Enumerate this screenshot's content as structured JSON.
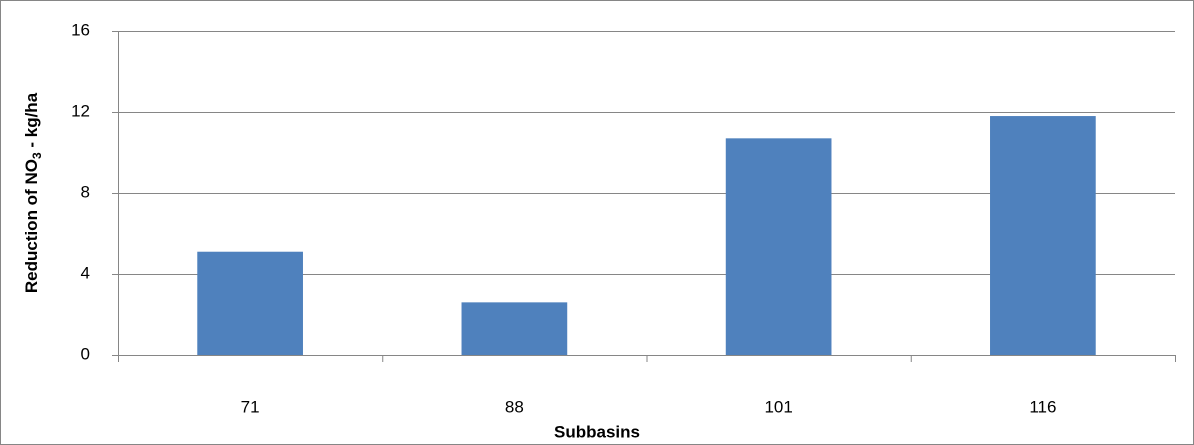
{
  "chart_data": {
    "type": "bar",
    "x_label": "Subbasins",
    "y_label": "Reduction of NO3 - kg/ha",
    "categories": [
      "71",
      "88",
      "101",
      "116"
    ],
    "values": [
      5.1,
      2.6,
      10.7,
      11.8
    ],
    "color": "#4f81bd",
    "ylim": [
      0,
      16
    ],
    "yticks": [
      0,
      4,
      8,
      12,
      16
    ],
    "grid": true
  }
}
